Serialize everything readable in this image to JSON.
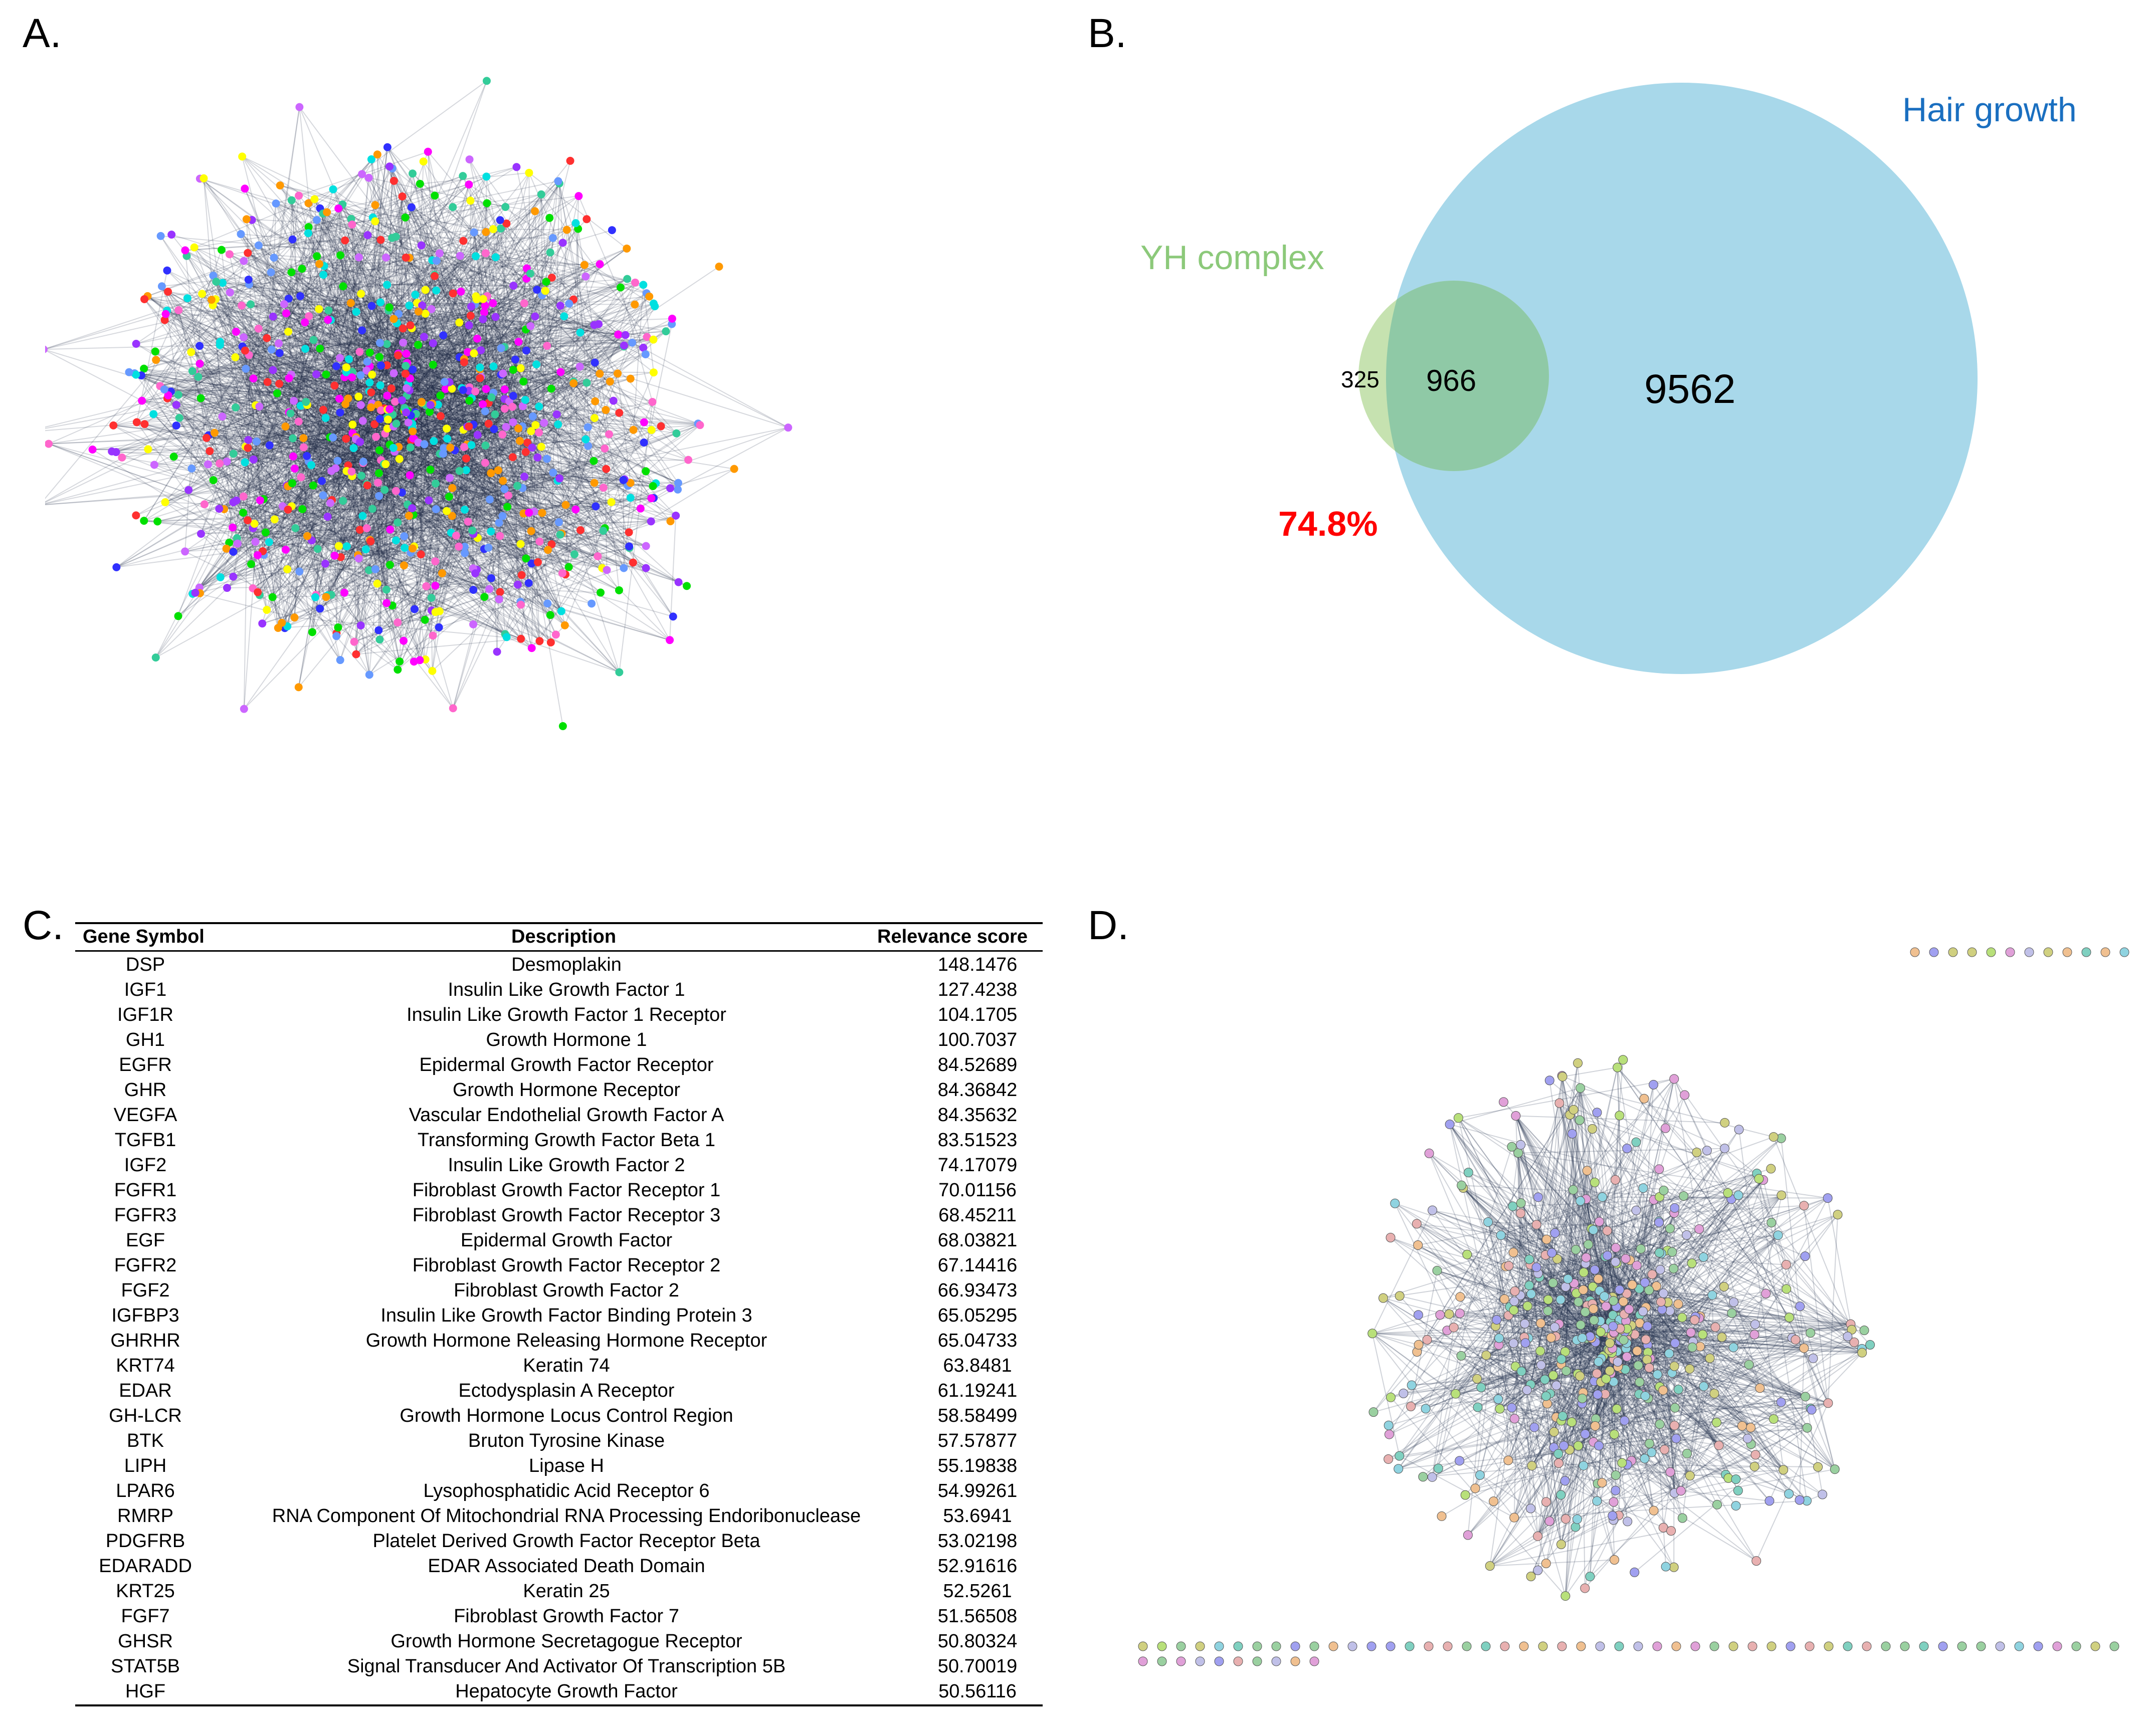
{
  "panels": {
    "a": {
      "letter": "A."
    },
    "b": {
      "letter": "B.",
      "venn": {
        "set_left_label": "YH complex",
        "set_right_label": "Hair growth",
        "only_left": "325",
        "intersection": "966",
        "only_right": "9562",
        "overlap_percent": "74.8%",
        "colors": {
          "left": "#c6e2b0",
          "right": "#a8d8ea",
          "overlap": "#8fc9a6",
          "left_label": "#8cc97a",
          "right_label": "#1a6fc0",
          "percent": "#ff0000"
        }
      }
    },
    "c": {
      "letter": "C.",
      "table": {
        "headers": {
          "symbol": "Gene Symbol",
          "description": "Description",
          "score": "Relevance score"
        },
        "rows": [
          {
            "symbol": "DSP",
            "description": "Desmoplakin",
            "score": "148.1476"
          },
          {
            "symbol": "IGF1",
            "description": "Insulin Like Growth Factor 1",
            "score": "127.4238"
          },
          {
            "symbol": "IGF1R",
            "description": "Insulin Like Growth Factor 1 Receptor",
            "score": "104.1705"
          },
          {
            "symbol": "GH1",
            "description": "Growth Hormone 1",
            "score": "100.7037"
          },
          {
            "symbol": "EGFR",
            "description": "Epidermal Growth Factor Receptor",
            "score": "84.52689"
          },
          {
            "symbol": "GHR",
            "description": "Growth Hormone Receptor",
            "score": "84.36842"
          },
          {
            "symbol": "VEGFA",
            "description": "Vascular Endothelial Growth Factor A",
            "score": "84.35632"
          },
          {
            "symbol": "TGFB1",
            "description": "Transforming Growth Factor Beta 1",
            "score": "83.51523"
          },
          {
            "symbol": "IGF2",
            "description": "Insulin Like Growth Factor 2",
            "score": "74.17079"
          },
          {
            "symbol": "FGFR1",
            "description": "Fibroblast Growth Factor Receptor 1",
            "score": "70.01156"
          },
          {
            "symbol": "FGFR3",
            "description": "Fibroblast Growth Factor Receptor 3",
            "score": "68.45211"
          },
          {
            "symbol": "EGF",
            "description": "Epidermal Growth Factor",
            "score": "68.03821"
          },
          {
            "symbol": "FGFR2",
            "description": "Fibroblast Growth Factor Receptor 2",
            "score": "67.14416"
          },
          {
            "symbol": "FGF2",
            "description": "Fibroblast Growth Factor 2",
            "score": "66.93473"
          },
          {
            "symbol": "IGFBP3",
            "description": "Insulin Like Growth Factor Binding Protein 3",
            "score": "65.05295"
          },
          {
            "symbol": "GHRHR",
            "description": "Growth Hormone Releasing Hormone Receptor",
            "score": "65.04733"
          },
          {
            "symbol": "KRT74",
            "description": "Keratin 74",
            "score": "63.8481"
          },
          {
            "symbol": "EDAR",
            "description": "Ectodysplasin A Receptor",
            "score": "61.19241"
          },
          {
            "symbol": "GH-LCR",
            "description": "Growth Hormone Locus Control Region",
            "score": "58.58499"
          },
          {
            "symbol": "BTK",
            "description": "Bruton Tyrosine Kinase",
            "score": "57.57877"
          },
          {
            "symbol": "LIPH",
            "description": "Lipase H",
            "score": "55.19838"
          },
          {
            "symbol": "LPAR6",
            "description": "Lysophosphatidic Acid Receptor 6",
            "score": "54.99261"
          },
          {
            "symbol": "RMRP",
            "description": "RNA Component Of Mitochondrial RNA Processing Endoribonuclease",
            "score": "53.6941"
          },
          {
            "symbol": "PDGFRB",
            "description": "Platelet Derived Growth Factor Receptor Beta",
            "score": "53.02198"
          },
          {
            "symbol": "EDARADD",
            "description": "EDAR Associated Death Domain",
            "score": "52.91616"
          },
          {
            "symbol": "KRT25",
            "description": "Keratin 25",
            "score": "52.5261"
          },
          {
            "symbol": "FGF7",
            "description": "Fibroblast Growth Factor 7",
            "score": "51.56508"
          },
          {
            "symbol": "GHSR",
            "description": "Growth Hormone Secretagogue Receptor",
            "score": "50.80324"
          },
          {
            "symbol": "STAT5B",
            "description": "Signal Transducer And Activator Of Transcription 5B",
            "score": "50.70019"
          },
          {
            "symbol": "HGF",
            "description": "Hepatocyte Growth Factor",
            "score": "50.56116"
          }
        ]
      }
    },
    "d": {
      "letter": "D."
    }
  },
  "network_palette": [
    "#00e000",
    "#00e0e0",
    "#ff00ff",
    "#ff3030",
    "#3030ff",
    "#ff9900",
    "#9933ff",
    "#ff66cc",
    "#ffff00",
    "#33cc99",
    "#6699ff",
    "#cc66ff"
  ],
  "network_d_palette": [
    "#9ad0a0",
    "#8fd3e0",
    "#e0a0d8",
    "#c0c0e8",
    "#f0c090",
    "#b8e07a",
    "#7fd0c0",
    "#e8b0b0",
    "#a0a0f0",
    "#d0d080"
  ]
}
